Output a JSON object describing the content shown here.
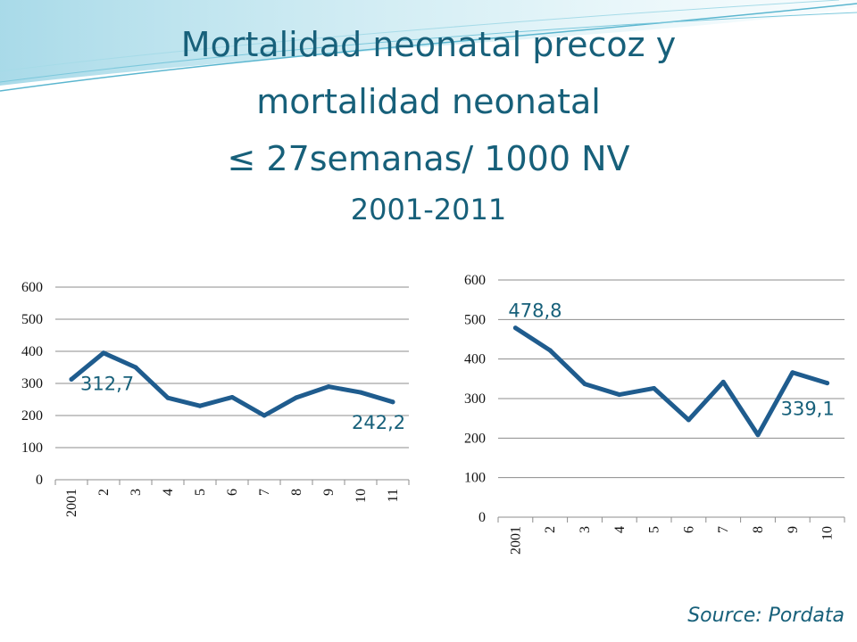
{
  "title": {
    "line1": "Mortalidad neonatal precoz y",
    "line2": "mortalidad neonatal",
    "line3": "≤ 27semanas/ 1000 NV",
    "line4": "2001-2011"
  },
  "source": "Source:  Pordata",
  "colors": {
    "series": "#1f5c8e",
    "title": "#17607a",
    "grid": "#8c8c8c"
  },
  "chart_data": [
    {
      "type": "line",
      "categories": [
        "2001",
        "2",
        "3",
        "4",
        "5",
        "6",
        "7",
        "8",
        "9",
        "10",
        "11"
      ],
      "series": [
        {
          "values": [
            312.7,
            395,
            350,
            255,
            230,
            257,
            200,
            256,
            290,
            272,
            242.2
          ]
        }
      ],
      "ylim": [
        0,
        600
      ],
      "yticks": [
        0,
        100,
        200,
        300,
        400,
        500,
        600
      ],
      "grid": true,
      "data_labels": [
        {
          "index": 0,
          "text": "312,7"
        },
        {
          "index": 10,
          "text": "242,2"
        }
      ]
    },
    {
      "type": "line",
      "categories": [
        "2001",
        "2",
        "3",
        "4",
        "5",
        "6",
        "7",
        "8",
        "9",
        "10"
      ],
      "series": [
        {
          "values": [
            478.8,
            422,
            337,
            310,
            326,
            246,
            342,
            208,
            366,
            339.1
          ]
        }
      ],
      "ylim": [
        0,
        600
      ],
      "yticks": [
        0,
        100,
        200,
        300,
        400,
        500,
        600
      ],
      "grid": true,
      "data_labels": [
        {
          "index": 0,
          "text": "478,8"
        },
        {
          "index": 9,
          "text": "339,1"
        }
      ]
    }
  ]
}
